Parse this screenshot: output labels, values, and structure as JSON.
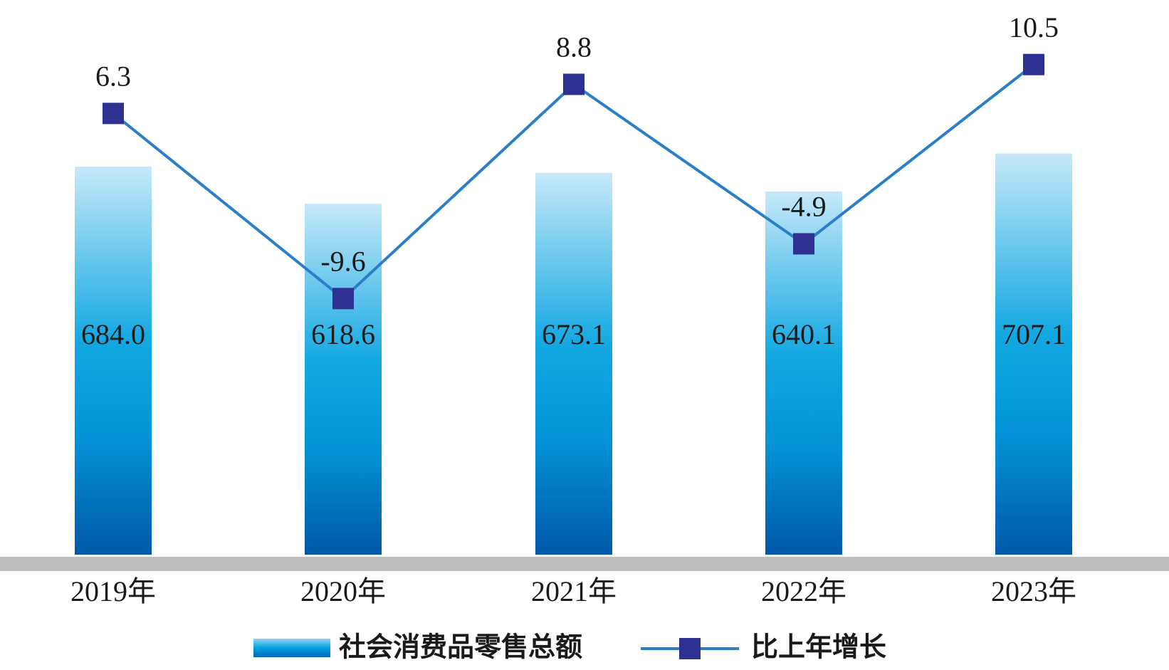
{
  "chart_data": {
    "type": "bar-line",
    "categories": [
      "2019年",
      "2020年",
      "2021年",
      "2022年",
      "2023年"
    ],
    "series": [
      {
        "name": "社会消费品零售总额",
        "type": "bar",
        "color": "#00a0e0",
        "values": [
          684.0,
          618.6,
          673.1,
          640.1,
          707.1
        ],
        "value_labels": [
          "684.0",
          "618.6",
          "673.1",
          "640.1",
          "707.1"
        ]
      },
      {
        "name": "比上年增长",
        "type": "line",
        "axis": "y2",
        "color": "#2a7fc8",
        "marker_color": "#2e3192",
        "values": [
          6.3,
          -9.6,
          8.8,
          -4.9,
          10.5
        ]
      }
    ],
    "ylim": [
      0,
      950
    ],
    "y2lim": [
      -31.6,
      14.7
    ]
  }
}
